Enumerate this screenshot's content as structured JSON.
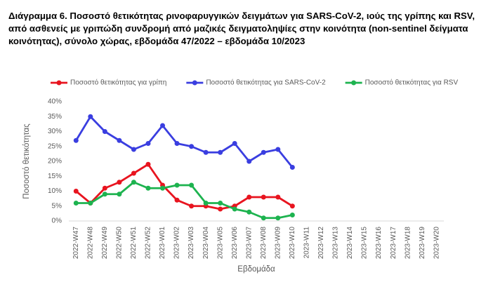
{
  "chart_data": {
    "type": "line",
    "title": "Διάγραμμα 6. Ποσοστό θετικότητας ρινοφαρυγγικών δειγμάτων για SARS-CoV-2, ιούς της γρίπης και RSV, από ασθενείς με γριπώδη συνδρομή από μαζικές δειγματοληψίες στην κοινότητα (non-sentinel δείγματα κοινότητας), σύνολο χώρας, εβδομάδα 47/2022 – εβδομάδα 10/2023",
    "x_label": "Εβδομάδα",
    "y_label": "Ποσοστό θετικότητας",
    "categories": [
      "2022-W47",
      "2022-W48",
      "2022-W49",
      "2022-W50",
      "2022-W51",
      "2022-W52",
      "2023-W01",
      "2023-W02",
      "2023-W03",
      "2023-W04",
      "2023-W05",
      "2023-W06",
      "2023-W07",
      "2023-W08",
      "2023-W09",
      "2023-W10",
      "2023-W11",
      "2023-W12",
      "2023-W13",
      "2023-W14",
      "2023-W15",
      "2023-W16",
      "2023-W17",
      "2023-W18",
      "2023-W19",
      "2023-W20"
    ],
    "series": [
      {
        "name": "Ποσοστό θετικότητας για γρίπη",
        "color": "#e8141f",
        "values": [
          10,
          6,
          11,
          13,
          16,
          19,
          12,
          7,
          5,
          5,
          4,
          5,
          8,
          8,
          8,
          5,
          null,
          null,
          null,
          null,
          null,
          null,
          null,
          null,
          null,
          null
        ]
      },
      {
        "name": "Ποσοστό θετικότητας για SARS-CoV-2",
        "color": "#3a3ee0",
        "values": [
          27,
          35,
          30,
          27,
          24,
          26,
          32,
          26,
          25,
          23,
          23,
          26,
          20,
          23,
          24,
          18,
          null,
          null,
          null,
          null,
          null,
          null,
          null,
          null,
          null,
          null
        ]
      },
      {
        "name": "Ποσοστό θετικότητας για RSV",
        "color": "#1db34f",
        "values": [
          6,
          6,
          9,
          9,
          13,
          11,
          11,
          12,
          12,
          6,
          6,
          4,
          3,
          1,
          1,
          2,
          null,
          null,
          null,
          null,
          null,
          null,
          null,
          null,
          null,
          null
        ]
      }
    ],
    "ylim": [
      0,
      40
    ],
    "yticks": [
      {
        "value": 0,
        "label": "0%"
      },
      {
        "value": 5,
        "label": "5%"
      },
      {
        "value": 10,
        "label": "10%"
      },
      {
        "value": 15,
        "label": "15%"
      },
      {
        "value": 20,
        "label": "20%"
      },
      {
        "value": 25,
        "label": "25%"
      },
      {
        "value": 30,
        "label": "30%"
      },
      {
        "value": 35,
        "label": "35%"
      },
      {
        "value": 40,
        "label": "40%"
      }
    ],
    "grid": false,
    "legend": "top"
  }
}
